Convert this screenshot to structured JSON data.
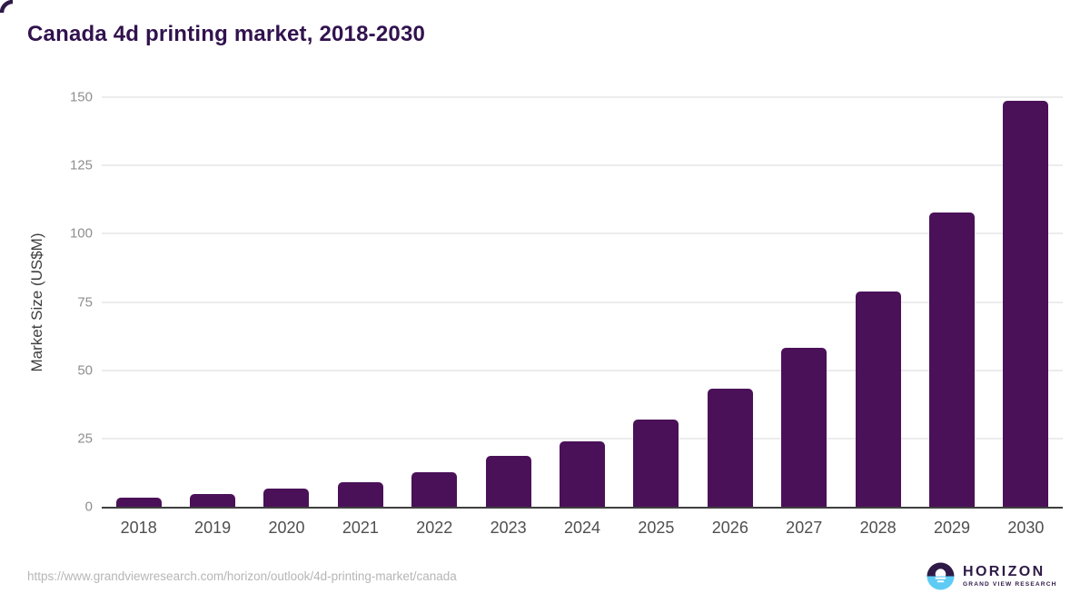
{
  "chart_data": {
    "type": "bar",
    "title": "Canada 4d printing market, 2018-2030",
    "categories": [
      "2018",
      "2019",
      "2020",
      "2021",
      "2022",
      "2023",
      "2024",
      "2025",
      "2026",
      "2027",
      "2028",
      "2029",
      "2030"
    ],
    "values": [
      3.4,
      4.6,
      6.6,
      9.0,
      12.6,
      18.6,
      24.0,
      32.0,
      43.1,
      58.1,
      78.8,
      107.7,
      148.7
    ],
    "xlabel": "",
    "ylabel": "Market Size (US$M)",
    "ylim": [
      0,
      150
    ],
    "yticks": [
      0,
      25,
      50,
      75,
      100,
      125,
      150
    ],
    "grid": true,
    "legend": "none",
    "bar_color": "#4a1158"
  },
  "footer": {
    "source_url": "https://www.grandviewresearch.com/horizon/outlook/4d-printing-market/canada",
    "logo": {
      "name": "HORIZON",
      "subtitle": "GRAND VIEW RESEARCH"
    }
  },
  "colors": {
    "title_text": "#31124e",
    "bar": "#4a1158",
    "axis_line": "#3f3f3f",
    "gridline": "#ececec",
    "y_tick_text": "#8e8e8e",
    "x_tick_text": "#4f4f4f",
    "source_text": "#b6b6b6",
    "logo_purple": "#2e1a47",
    "logo_blue": "#5ecbf5"
  }
}
